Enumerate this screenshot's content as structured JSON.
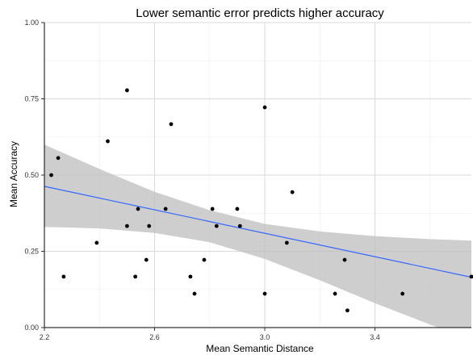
{
  "chart_data": {
    "type": "scatter",
    "title": "Lower semantic error predicts higher accuracy",
    "xlabel": "Mean Semantic Distance",
    "ylabel": "Mean Accuracy",
    "xlim": [
      2.2,
      3.75
    ],
    "ylim": [
      0.0,
      1.0
    ],
    "x_ticks": [
      2.2,
      2.6,
      3.0,
      3.4
    ],
    "x_tick_labels": [
      "2.2",
      "2.6",
      "3.0",
      "3.4"
    ],
    "y_ticks": [
      0.0,
      0.25,
      0.5,
      0.75,
      1.0
    ],
    "y_tick_labels": [
      "0.00",
      "0.25",
      "0.50",
      "0.75",
      "1.00"
    ],
    "grid": true,
    "colors": {
      "points": "#000000",
      "fit_line": "#3366ff",
      "confidence_band": "#bdbdbd",
      "grid": "#d9d9d9"
    },
    "points": [
      {
        "x": 2.225,
        "y": 0.5
      },
      {
        "x": 2.25,
        "y": 0.556
      },
      {
        "x": 2.27,
        "y": 0.167
      },
      {
        "x": 2.39,
        "y": 0.278
      },
      {
        "x": 2.43,
        "y": 0.611
      },
      {
        "x": 2.5,
        "y": 0.778
      },
      {
        "x": 2.5,
        "y": 0.333
      },
      {
        "x": 2.53,
        "y": 0.167
      },
      {
        "x": 2.54,
        "y": 0.389
      },
      {
        "x": 2.57,
        "y": 0.222
      },
      {
        "x": 2.58,
        "y": 0.333
      },
      {
        "x": 2.64,
        "y": 0.389
      },
      {
        "x": 2.66,
        "y": 0.667
      },
      {
        "x": 2.73,
        "y": 0.167
      },
      {
        "x": 2.745,
        "y": 0.111
      },
      {
        "x": 2.78,
        "y": 0.222
      },
      {
        "x": 2.81,
        "y": 0.389
      },
      {
        "x": 2.825,
        "y": 0.333
      },
      {
        "x": 2.9,
        "y": 0.389
      },
      {
        "x": 2.91,
        "y": 0.333
      },
      {
        "x": 3.0,
        "y": 0.722
      },
      {
        "x": 3.0,
        "y": 0.111
      },
      {
        "x": 3.08,
        "y": 0.278
      },
      {
        "x": 3.1,
        "y": 0.444
      },
      {
        "x": 3.255,
        "y": 0.111
      },
      {
        "x": 3.29,
        "y": 0.222
      },
      {
        "x": 3.3,
        "y": 0.056
      },
      {
        "x": 3.5,
        "y": 0.111
      },
      {
        "x": 3.75,
        "y": 0.167
      }
    ],
    "fit_line": {
      "x": [
        2.2,
        3.75
      ],
      "y": [
        0.463,
        0.165
      ]
    },
    "confidence_band": {
      "x": [
        2.2,
        2.4,
        2.6,
        2.8,
        3.0,
        3.2,
        3.4,
        3.6,
        3.75
      ],
      "upper": [
        0.6,
        0.52,
        0.445,
        0.385,
        0.34,
        0.315,
        0.3,
        0.29,
        0.285
      ],
      "lower": [
        0.33,
        0.325,
        0.31,
        0.28,
        0.225,
        0.155,
        0.08,
        0.01,
        -0.04
      ]
    }
  }
}
